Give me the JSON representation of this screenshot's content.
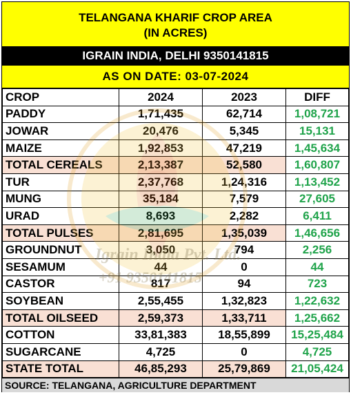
{
  "header": {
    "title_line1": "TELANGANA KHARIF CROP AREA",
    "title_line2": "(IN ACRES)",
    "contact": "IGRAIN INDIA, DELHI 9350141815",
    "date": "AS ON DATE: 03-07-2024"
  },
  "table": {
    "columns": [
      "CROP",
      "2024",
      "2023",
      "DIFF"
    ],
    "rows": [
      {
        "crop": "PADDY",
        "y2024": "1,71,435",
        "y2023": "62,714",
        "diff": "1,08,721"
      },
      {
        "crop": "JOWAR",
        "y2024": "20,476",
        "y2023": "5,345",
        "diff": "15,131"
      },
      {
        "crop": "MAIZE",
        "y2024": "1,92,853",
        "y2023": "47,219",
        "diff": "1,45,634"
      },
      {
        "crop": "TOTAL CEREALS",
        "y2024": "2,13,387",
        "y2023": "52,580",
        "diff": "1,60,807"
      },
      {
        "crop": "TUR",
        "y2024": "2,37,768",
        "y2023": "1,24,316",
        "diff": "1,13,452"
      },
      {
        "crop": "MUNG",
        "y2024": "35,184",
        "y2023": "7,579",
        "diff": "27,605"
      },
      {
        "crop": "URAD",
        "y2024": "8,693",
        "y2023": "2,282",
        "diff": "6,411"
      },
      {
        "crop": "TOTAL PULSES",
        "y2024": "2,81,695",
        "y2023": "1,35,039",
        "diff": "1,46,656"
      },
      {
        "crop": "GROUNDNUT",
        "y2024": "3,050",
        "y2023": "794",
        "diff": "2,256"
      },
      {
        "crop": "SESAMUM",
        "y2024": "44",
        "y2023": "0",
        "diff": "44"
      },
      {
        "crop": "CASTOR",
        "y2024": "817",
        "y2023": "94",
        "diff": "723"
      },
      {
        "crop": "SOYBEAN",
        "y2024": "2,55,455",
        "y2023": "1,32,823",
        "diff": "1,22,632"
      },
      {
        "crop": "TOTAL OILSEED",
        "y2024": "2,59,373",
        "y2023": "1,33,711",
        "diff": "1,25,662"
      },
      {
        "crop": "COTTON",
        "y2024": "33,81,383",
        "y2023": "18,55,899",
        "diff": "15,25,484"
      },
      {
        "crop": "SUGARCANE",
        "y2024": "4,725",
        "y2023": "0",
        "diff": "4,725"
      },
      {
        "crop": "STATE TOTAL",
        "y2024": "46,85,293",
        "y2023": "25,79,869",
        "diff": "21,05,424"
      }
    ]
  },
  "footer": {
    "source": "SOURCE: TELANGANA, AGRICULTURE DEPARTMENT"
  },
  "watermark": {
    "text1": "Igrain India Pvt. Ltd.",
    "text2": "+91 9350141815"
  },
  "colors": {
    "header_yellow": "#ffff00",
    "contact_black": "#000000",
    "diff_green": "#1fa34a",
    "total_row_pink": "#f9e0d4",
    "footer_grey": "#d9d9d9"
  }
}
